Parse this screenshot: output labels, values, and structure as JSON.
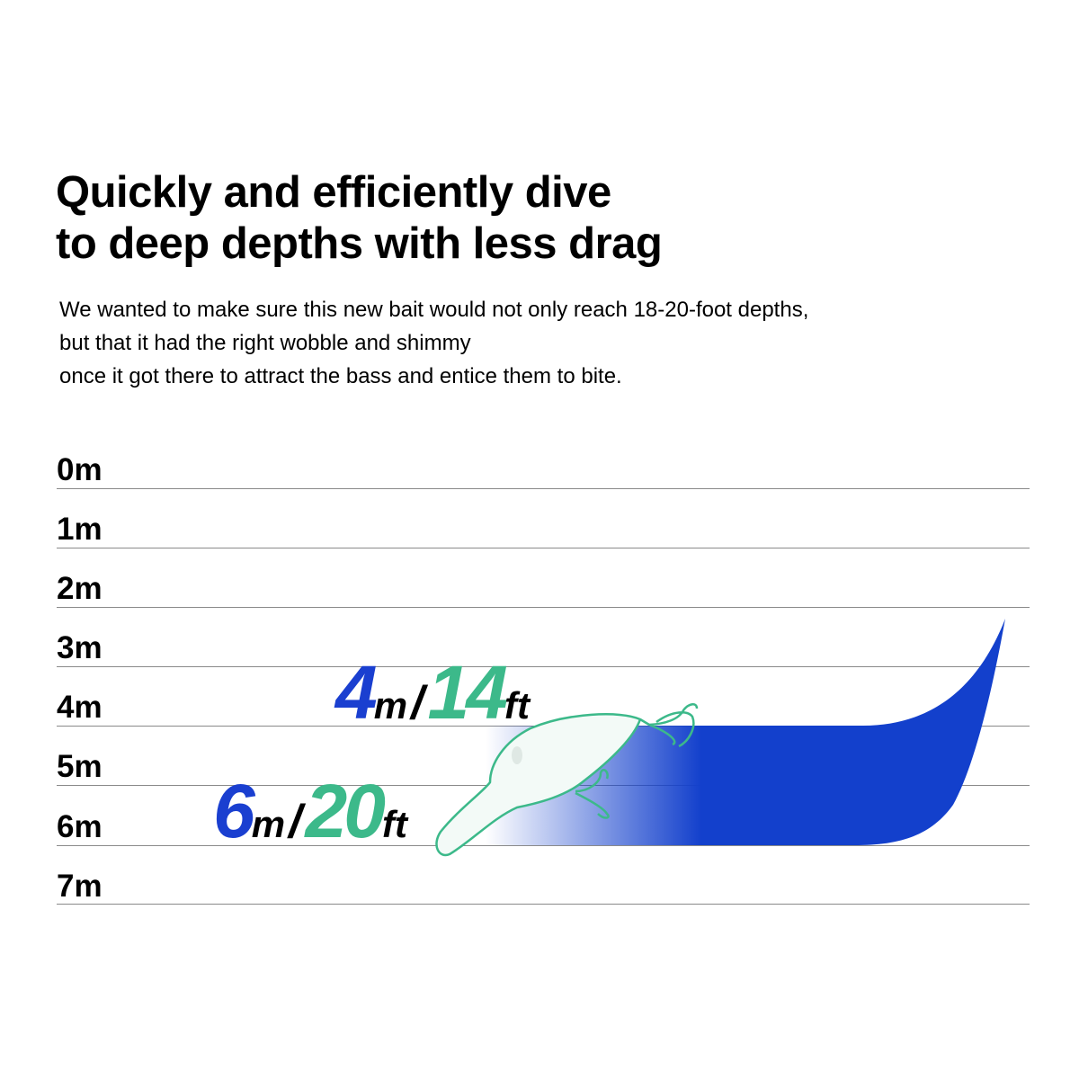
{
  "header": {
    "title_lines": [
      "Quickly and efficiently dive",
      "to deep depths with less drag"
    ],
    "description_lines": [
      "We wanted to make sure this new bait would not only reach 18-20-foot depths,",
      "but that it had the right wobble and shimmy",
      "once it got there to attract the bass and entice them to bite."
    ]
  },
  "scale": {
    "labels": [
      "0m",
      "1m",
      "2m",
      "3m",
      "4m",
      "5m",
      "6m",
      "7m"
    ]
  },
  "depth_labels": [
    {
      "meters": "4",
      "m_unit": "m",
      "separator": "/",
      "feet": "14",
      "ft_unit": "ft"
    },
    {
      "meters": "6",
      "m_unit": "m",
      "separator": "/",
      "feet": "20",
      "ft_unit": "ft"
    }
  ],
  "colors": {
    "dive_path": "#1340cc",
    "meters_text": "#1a3fd0",
    "feet_text": "#3cb98a",
    "lure_outline": "#3cb98a",
    "grid_line": "#8a8a8a"
  },
  "icons": {
    "lure": "crankbait-lure-icon"
  }
}
